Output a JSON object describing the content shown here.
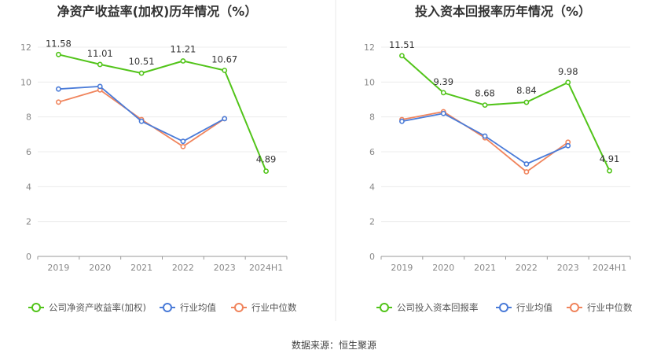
{
  "source_text": "数据来源：恒生聚源",
  "chart_data": [
    {
      "type": "line",
      "title": "净资产收益率(加权)历年情况（%）",
      "categories": [
        "2019",
        "2020",
        "2021",
        "2022",
        "2023",
        "2024H1"
      ],
      "ylim": [
        0,
        12
      ],
      "yticks": [
        0,
        2,
        4,
        6,
        8,
        10,
        12
      ],
      "legend_position": "bottom-left",
      "series": [
        {
          "name": "公司净资产收益率(加权)",
          "color": "#52c41a",
          "values": [
            11.58,
            11.01,
            10.51,
            11.21,
            10.67,
            4.89
          ],
          "labels": [
            "11.58",
            "11.01",
            "10.51",
            "11.21",
            "10.67",
            "4.89"
          ]
        },
        {
          "name": "行业均值",
          "color": "#4a7bd8",
          "values": [
            9.6,
            9.75,
            7.75,
            6.6,
            7.9,
            null
          ]
        },
        {
          "name": "行业中位数",
          "color": "#f0845c",
          "values": [
            8.85,
            9.55,
            7.85,
            6.3,
            7.9,
            null
          ]
        }
      ]
    },
    {
      "type": "line",
      "title": "投入资本回报率历年情况（%）",
      "categories": [
        "2019",
        "2020",
        "2021",
        "2022",
        "2023",
        "2024H1"
      ],
      "ylim": [
        0,
        12
      ],
      "yticks": [
        0,
        2,
        4,
        6,
        8,
        10,
        12
      ],
      "legend_position": "bottom-left",
      "series": [
        {
          "name": "公司投入资本回报率",
          "color": "#52c41a",
          "values": [
            11.51,
            9.39,
            8.68,
            8.84,
            9.98,
            4.91
          ],
          "labels": [
            "11.51",
            "9.39",
            "8.68",
            "8.84",
            "9.98",
            "4.91"
          ]
        },
        {
          "name": "行业均值",
          "color": "#4a7bd8",
          "values": [
            7.75,
            8.2,
            6.9,
            5.3,
            6.35,
            null
          ]
        },
        {
          "name": "行业中位数",
          "color": "#f0845c",
          "values": [
            7.85,
            8.3,
            6.8,
            4.85,
            6.55,
            null
          ]
        }
      ]
    }
  ]
}
